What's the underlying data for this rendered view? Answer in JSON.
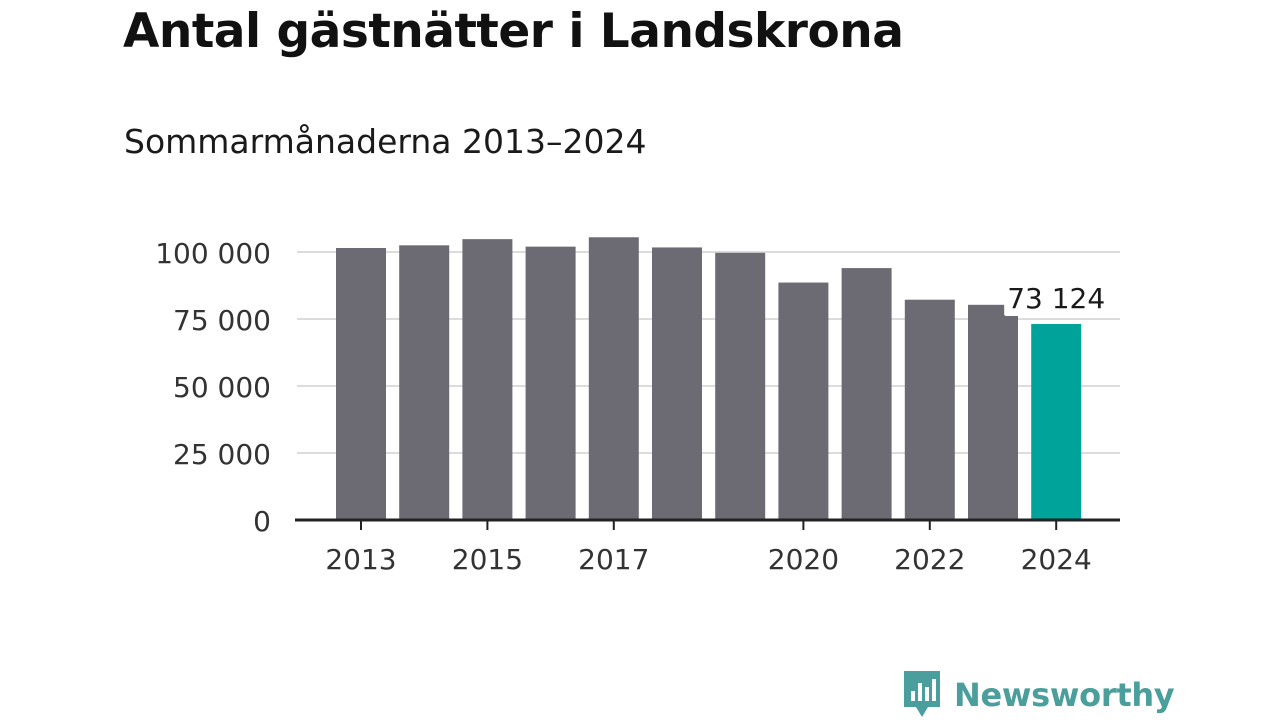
{
  "title": "Antal gästnätter i Landskrona",
  "subtitle": "Sommarmånaderna 2013–2024",
  "chart_data": {
    "type": "bar",
    "categories": [
      "2013",
      "2014",
      "2015",
      "2016",
      "2017",
      "2018",
      "2019",
      "2020",
      "2021",
      "2022",
      "2023",
      "2024"
    ],
    "values": [
      101500,
      102500,
      104800,
      102000,
      105500,
      101700,
      99700,
      88600,
      94000,
      82200,
      80300,
      73124
    ],
    "ylim": [
      0,
      100000
    ],
    "yticks": [
      0,
      25000,
      50000,
      75000,
      100000
    ],
    "ytick_labels": [
      "0",
      "25 000",
      "50 000",
      "75 000",
      "100 000"
    ],
    "xtick_labels": [
      "2013",
      "2015",
      "2017",
      "2020",
      "2022",
      "2024"
    ],
    "annotation": {
      "category": "2024",
      "text": "73 124"
    },
    "colors": {
      "bar": "#6c6b73",
      "highlight": "#00a39a",
      "grid": "#dcdcdc",
      "axis": "#222222"
    },
    "grid": true
  },
  "brand": {
    "name": "Newsworthy",
    "icon": "newsworthy-logo-icon",
    "color": "#4a9e9b"
  }
}
